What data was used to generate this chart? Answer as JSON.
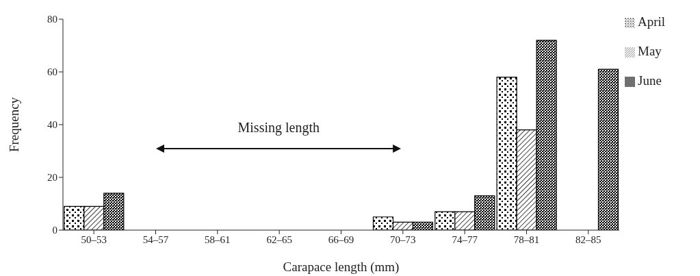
{
  "chart_data": {
    "type": "bar",
    "xlabel": "Carapace length (mm)",
    "ylabel": "Frequency",
    "categories": [
      "50–53",
      "54–57",
      "58–61",
      "62–65",
      "66–69",
      "70–73",
      "74–77",
      "78–81",
      "82–85"
    ],
    "series": [
      {
        "name": "April",
        "color": "#000000",
        "values": [
          9,
          null,
          null,
          null,
          null,
          5,
          7,
          58,
          null
        ]
      },
      {
        "name": "May",
        "color": "#000000",
        "values": [
          9,
          null,
          null,
          null,
          null,
          3,
          7,
          38,
          null
        ]
      },
      {
        "name": "June",
        "color": "#000000",
        "values": [
          14,
          null,
          null,
          null,
          null,
          3,
          13,
          72,
          61
        ]
      }
    ],
    "ylim": [
      0,
      80
    ],
    "yticks": [
      0,
      20,
      40,
      60,
      80
    ],
    "grid": false,
    "legend": "top right",
    "annotations": [
      "Missing length"
    ]
  }
}
